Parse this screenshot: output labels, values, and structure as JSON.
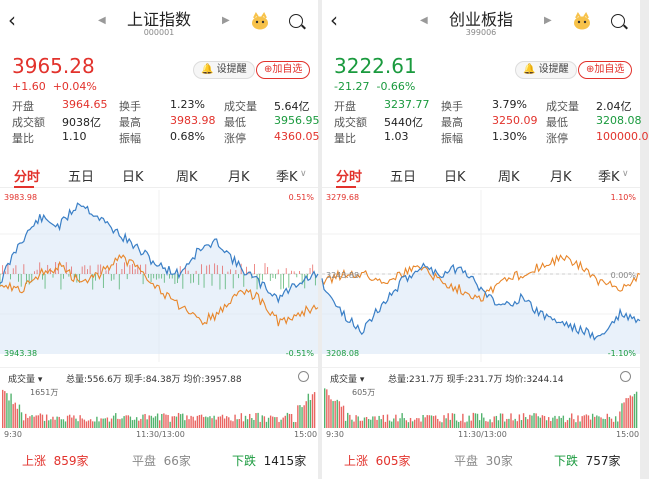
{
  "panels": [
    {
      "title": "上证指数",
      "code": "000001",
      "price": "3965.28",
      "change": "+1.60",
      "change_pct": "+0.04%",
      "dir": "up",
      "btn_alert": "设提醒",
      "btn_watch": "加自选",
      "stats": [
        [
          {
            "l": "开盘"
          },
          {
            "v": "3964.65",
            "c": "red"
          },
          {
            "l": "换手"
          },
          {
            "v": "1.23%"
          },
          {
            "l": "成交量"
          },
          {
            "v": "5.64亿"
          }
        ],
        [
          {
            "l": "成交额"
          },
          {
            "v": "9038亿"
          },
          {
            "l": "最高"
          },
          {
            "v": "3983.98",
            "c": "red"
          },
          {
            "l": "最低"
          },
          {
            "v": "3956.95",
            "c": "green"
          }
        ],
        [
          {
            "l": "量比"
          },
          {
            "v": "1.10"
          },
          {
            "l": "振幅"
          },
          {
            "v": "0.68%"
          },
          {
            "l": "涨停"
          },
          {
            "v": "4360.05",
            "c": "red"
          }
        ]
      ],
      "tabs": [
        "分时",
        "五日",
        "日K",
        "周K",
        "月K",
        "季K"
      ],
      "chart_top": "3983.98",
      "chart_bottom": "3943.38",
      "pct_top": "0.51%",
      "pct_bottom": "-0.51%",
      "chart_mid": "",
      "vol_label": "成交量",
      "vol_info": "总量:556.6万  现手:84.38万  均价:3957.88",
      "vol_max": "1651万",
      "t_start": "9:30",
      "t_mid": "11:30/13:00",
      "t_end": "15:00",
      "up_label": "上涨",
      "up_val": "859家",
      "flat_label": "平盘",
      "flat_val": "66家",
      "down_label": "下跌",
      "down_val": "1415家"
    },
    {
      "title": "创业板指",
      "code": "399006",
      "price": "3222.61",
      "change": "-21.27",
      "change_pct": "-0.66%",
      "dir": "down",
      "btn_alert": "设提醒",
      "btn_watch": "加自选",
      "stats": [
        [
          {
            "l": "开盘"
          },
          {
            "v": "3237.77",
            "c": "green"
          },
          {
            "l": "换手"
          },
          {
            "v": "3.79%"
          },
          {
            "l": "成交量"
          },
          {
            "v": "2.04亿"
          }
        ],
        [
          {
            "l": "成交额"
          },
          {
            "v": "5440亿"
          },
          {
            "l": "最高"
          },
          {
            "v": "3250.09",
            "c": "red"
          },
          {
            "l": "最低"
          },
          {
            "v": "3208.08",
            "c": "green"
          }
        ],
        [
          {
            "l": "量比"
          },
          {
            "v": "1.03"
          },
          {
            "l": "振幅"
          },
          {
            "v": "1.30%"
          },
          {
            "l": "涨停"
          },
          {
            "v": "100000.0",
            "c": "red"
          }
        ]
      ],
      "tabs": [
        "分时",
        "五日",
        "日K",
        "周K",
        "月K",
        "季K"
      ],
      "chart_top": "3279.68",
      "chart_bottom": "3208.08",
      "pct_top": "1.10%",
      "pct_bottom": "-1.10%",
      "chart_mid": "3243.88",
      "pct_mid": "0.00%",
      "vol_label": "成交量",
      "vol_info": "总量:231.7万  现手:231.7万  均价:3244.14",
      "vol_max": "605万",
      "t_start": "9:30",
      "t_mid": "11:30/13:00",
      "t_end": "15:00",
      "up_label": "上涨",
      "up_val": "605家",
      "flat_label": "平盘",
      "flat_val": "30家",
      "down_label": "下跌",
      "down_val": "757家"
    }
  ],
  "colors": {
    "up": "#e2322c",
    "down": "#1a9a3e",
    "price_line": "#3a7fc6",
    "avg_line": "#e8862a"
  }
}
